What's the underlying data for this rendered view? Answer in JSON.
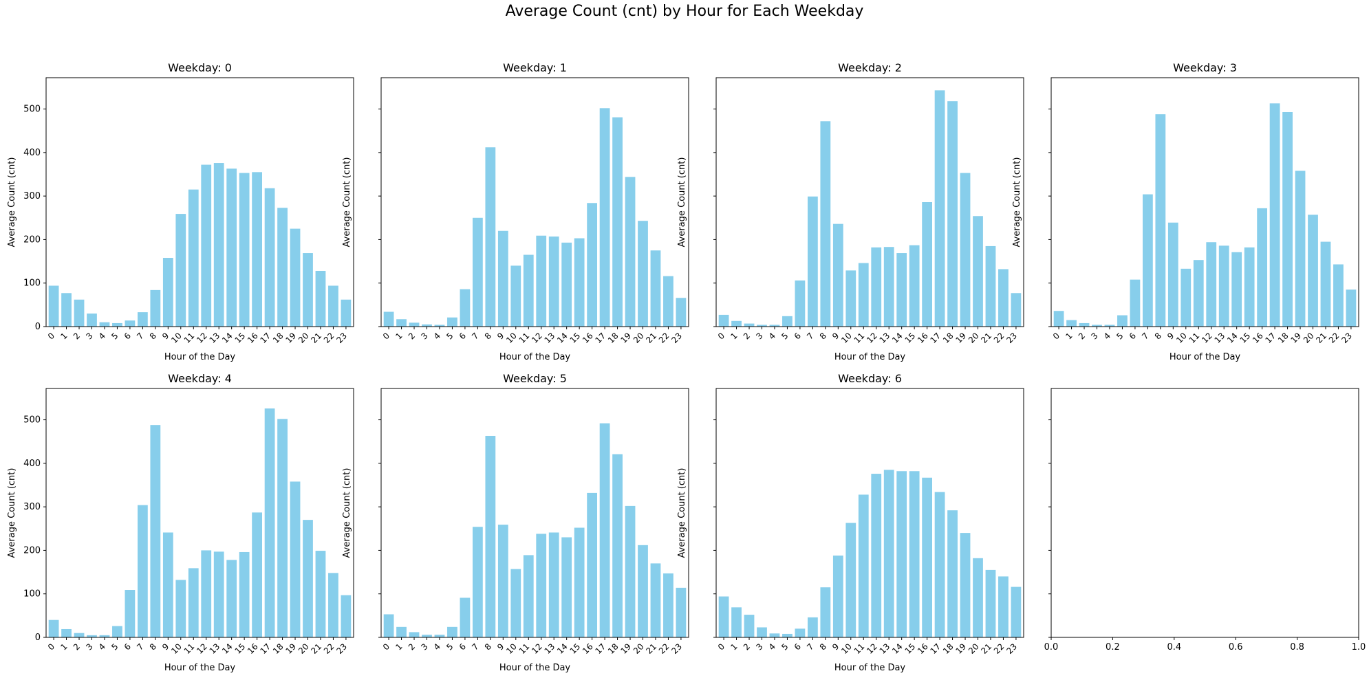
{
  "figure": {
    "title": "Average Count (cnt) by Hour for Each Weekday"
  },
  "colors": {
    "bar": "#87CEEB",
    "axes": "#000000",
    "background": "#ffffff"
  },
  "chart_data": [
    {
      "type": "bar",
      "title": "Weekday: 0",
      "xlabel": "Hour of the Day",
      "ylabel": "Average Count (cnt)",
      "categories": [
        "0",
        "1",
        "2",
        "3",
        "4",
        "5",
        "6",
        "7",
        "8",
        "9",
        "10",
        "11",
        "12",
        "13",
        "14",
        "15",
        "16",
        "17",
        "18",
        "19",
        "20",
        "21",
        "22",
        "23"
      ],
      "values": [
        94,
        77,
        62,
        30,
        10,
        8,
        14,
        33,
        84,
        158,
        259,
        315,
        372,
        376,
        363,
        353,
        355,
        318,
        273,
        225,
        169,
        128,
        94,
        62
      ],
      "ylim": [
        0,
        572
      ],
      "yticks": [
        0,
        100,
        200,
        300,
        400,
        500
      ],
      "show_ytick_labels": true
    },
    {
      "type": "bar",
      "title": "Weekday: 1",
      "xlabel": "Hour of the Day",
      "ylabel": "Average Count (cnt)",
      "categories": [
        "0",
        "1",
        "2",
        "3",
        "4",
        "5",
        "6",
        "7",
        "8",
        "9",
        "10",
        "11",
        "12",
        "13",
        "14",
        "15",
        "16",
        "17",
        "18",
        "19",
        "20",
        "21",
        "22",
        "23"
      ],
      "values": [
        34,
        17,
        9,
        5,
        4,
        21,
        86,
        250,
        412,
        220,
        140,
        165,
        209,
        207,
        193,
        203,
        284,
        502,
        481,
        344,
        243,
        175,
        116,
        66
      ],
      "ylim": [
        0,
        572
      ],
      "yticks": [
        0,
        100,
        200,
        300,
        400,
        500
      ],
      "show_ytick_labels": false
    },
    {
      "type": "bar",
      "title": "Weekday: 2",
      "xlabel": "Hour of the Day",
      "ylabel": "Average Count (cnt)",
      "categories": [
        "0",
        "1",
        "2",
        "3",
        "4",
        "5",
        "6",
        "7",
        "8",
        "9",
        "10",
        "11",
        "12",
        "13",
        "14",
        "15",
        "16",
        "17",
        "18",
        "19",
        "20",
        "21",
        "22",
        "23"
      ],
      "values": [
        27,
        13,
        7,
        4,
        4,
        24,
        106,
        299,
        472,
        236,
        129,
        146,
        182,
        183,
        169,
        187,
        286,
        543,
        518,
        353,
        254,
        185,
        132,
        77
      ],
      "ylim": [
        0,
        572
      ],
      "yticks": [
        0,
        100,
        200,
        300,
        400,
        500
      ],
      "show_ytick_labels": false
    },
    {
      "type": "bar",
      "title": "Weekday: 3",
      "xlabel": "Hour of the Day",
      "ylabel": "Average Count (cnt)",
      "categories": [
        "0",
        "1",
        "2",
        "3",
        "4",
        "5",
        "6",
        "7",
        "8",
        "9",
        "10",
        "11",
        "12",
        "13",
        "14",
        "15",
        "16",
        "17",
        "18",
        "19",
        "20",
        "21",
        "22",
        "23"
      ],
      "values": [
        36,
        15,
        8,
        4,
        4,
        26,
        108,
        304,
        488,
        239,
        133,
        153,
        194,
        186,
        171,
        182,
        272,
        513,
        493,
        358,
        257,
        195,
        143,
        85
      ],
      "ylim": [
        0,
        572
      ],
      "yticks": [
        0,
        100,
        200,
        300,
        400,
        500
      ],
      "show_ytick_labels": false
    },
    {
      "type": "bar",
      "title": "Weekday: 4",
      "xlabel": "Hour of the Day",
      "ylabel": "Average Count (cnt)",
      "categories": [
        "0",
        "1",
        "2",
        "3",
        "4",
        "5",
        "6",
        "7",
        "8",
        "9",
        "10",
        "11",
        "12",
        "13",
        "14",
        "15",
        "16",
        "17",
        "18",
        "19",
        "20",
        "21",
        "22",
        "23"
      ],
      "values": [
        40,
        19,
        10,
        5,
        5,
        26,
        109,
        304,
        488,
        241,
        132,
        159,
        200,
        197,
        178,
        196,
        287,
        526,
        502,
        358,
        270,
        199,
        148,
        97
      ],
      "ylim": [
        0,
        572
      ],
      "yticks": [
        0,
        100,
        200,
        300,
        400,
        500
      ],
      "show_ytick_labels": true
    },
    {
      "type": "bar",
      "title": "Weekday: 5",
      "xlabel": "Hour of the Day",
      "ylabel": "Average Count (cnt)",
      "categories": [
        "0",
        "1",
        "2",
        "3",
        "4",
        "5",
        "6",
        "7",
        "8",
        "9",
        "10",
        "11",
        "12",
        "13",
        "14",
        "15",
        "16",
        "17",
        "18",
        "19",
        "20",
        "21",
        "22",
        "23"
      ],
      "values": [
        53,
        24,
        12,
        6,
        6,
        24,
        91,
        254,
        463,
        259,
        157,
        189,
        238,
        241,
        230,
        252,
        332,
        492,
        421,
        302,
        212,
        170,
        147,
        114
      ],
      "ylim": [
        0,
        572
      ],
      "yticks": [
        0,
        100,
        200,
        300,
        400,
        500
      ],
      "show_ytick_labels": false
    },
    {
      "type": "bar",
      "title": "Weekday: 6",
      "xlabel": "Hour of the Day",
      "ylabel": "Average Count (cnt)",
      "categories": [
        "0",
        "1",
        "2",
        "3",
        "4",
        "5",
        "6",
        "7",
        "8",
        "9",
        "10",
        "11",
        "12",
        "13",
        "14",
        "15",
        "16",
        "17",
        "18",
        "19",
        "20",
        "21",
        "22",
        "23"
      ],
      "values": [
        94,
        69,
        52,
        23,
        9,
        8,
        20,
        46,
        115,
        188,
        263,
        328,
        376,
        385,
        382,
        382,
        367,
        334,
        292,
        240,
        182,
        155,
        140,
        116
      ],
      "ylim": [
        0,
        572
      ],
      "yticks": [
        0,
        100,
        200,
        300,
        400,
        500
      ],
      "show_ytick_labels": false
    },
    {
      "type": "bar",
      "title": "",
      "xlabel": "",
      "ylabel": "",
      "categories": [],
      "values": [],
      "xlim": [
        0,
        1
      ],
      "ylim": [
        0,
        572
      ],
      "xticks": [
        "0.0",
        "0.2",
        "0.4",
        "0.6",
        "0.8",
        "1.0"
      ],
      "yticks": [
        0,
        100,
        200,
        300,
        400,
        500
      ],
      "show_ytick_labels": false
    }
  ]
}
